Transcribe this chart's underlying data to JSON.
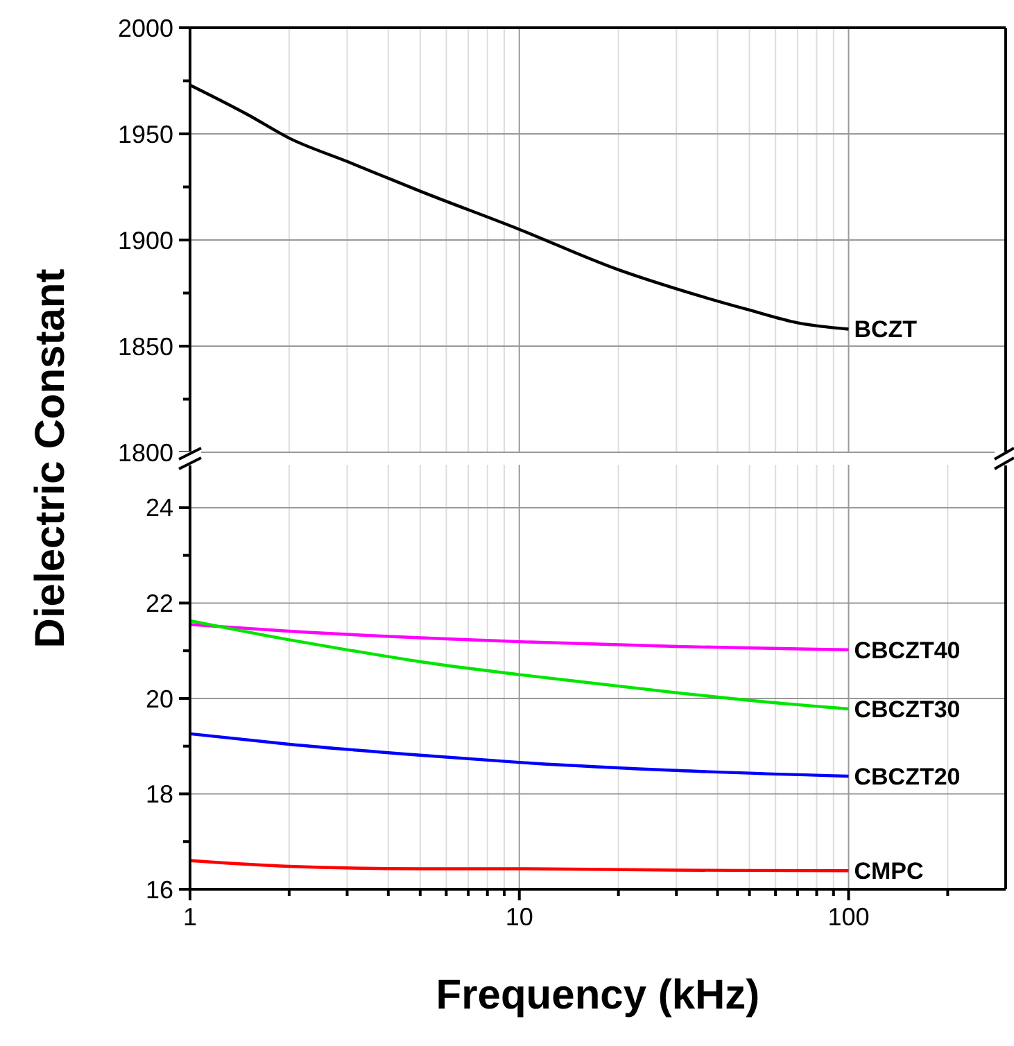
{
  "chart_data": [
    {
      "type": "line",
      "ylabel": "Dielectric Constant",
      "log": "x",
      "grid": true,
      "tick_labels": "y",
      "marker": "none",
      "line_style": "solid",
      "xlim": [
        1,
        300
      ],
      "xticks": [
        1,
        {
          "value": 2,
          "label": null
        },
        {
          "value": 3,
          "label": null
        },
        {
          "value": 4,
          "label": null
        },
        {
          "value": 5,
          "label": null
        },
        {
          "value": 6,
          "label": null
        },
        {
          "value": 7,
          "label": null
        },
        {
          "value": 8,
          "label": null
        },
        {
          "value": 9,
          "label": null
        },
        10,
        {
          "value": 20,
          "label": null
        },
        {
          "value": 30,
          "label": null
        },
        {
          "value": 40,
          "label": null
        },
        {
          "value": 50,
          "label": null
        },
        {
          "value": 60,
          "label": null
        },
        {
          "value": 70,
          "label": null
        },
        {
          "value": 80,
          "label": null
        },
        {
          "value": 90,
          "label": null
        },
        100
      ],
      "ylim": [
        1800,
        2000
      ],
      "yticks": [
        1800,
        {
          "value": 1825,
          "label": null
        },
        1850,
        {
          "value": 1875,
          "label": null
        },
        1900,
        {
          "value": 1925,
          "label": null
        },
        1950,
        {
          "value": 1975,
          "label": null
        },
        2000
      ],
      "series": [
        {
          "name": "BCZT",
          "color": "#000000",
          "x": [
            1,
            1.5,
            2,
            3,
            5,
            10,
            20,
            30,
            50,
            70,
            100
          ],
          "values": [
            1973,
            1959,
            1948,
            1937,
            1923,
            1905,
            1886,
            1877,
            1867,
            1861,
            1858
          ]
        }
      ]
    },
    {
      "type": "line",
      "xlabel": "Frequency (kHz)",
      "log": "x",
      "grid": true,
      "marker": "none",
      "line_style": "solid",
      "xlim": [
        1,
        300
      ],
      "xticks": [
        1,
        {
          "value": 2,
          "label": null
        },
        {
          "value": 3,
          "label": null
        },
        {
          "value": 4,
          "label": null
        },
        {
          "value": 5,
          "label": null
        },
        {
          "value": 6,
          "label": null
        },
        {
          "value": 7,
          "label": null
        },
        {
          "value": 8,
          "label": null
        },
        {
          "value": 9,
          "label": null
        },
        10,
        {
          "value": 20,
          "label": null
        },
        {
          "value": 30,
          "label": null
        },
        {
          "value": 40,
          "label": null
        },
        {
          "value": 50,
          "label": null
        },
        {
          "value": 60,
          "label": null
        },
        {
          "value": 70,
          "label": null
        },
        {
          "value": 80,
          "label": null
        },
        {
          "value": 90,
          "label": null
        },
        100,
        {
          "value": 200,
          "label": null
        }
      ],
      "ylim": [
        16,
        24.9
      ],
      "yticks": [
        16,
        {
          "value": 17,
          "label": null
        },
        18,
        {
          "value": 19,
          "label": null
        },
        20,
        {
          "value": 21,
          "label": null
        },
        22,
        {
          "value": 23,
          "label": null
        },
        24
      ],
      "series": [
        {
          "name": "CBCZT40",
          "color": "#ff00ff",
          "x": [
            1,
            2,
            10,
            30,
            100
          ],
          "values": [
            21.55,
            21.41,
            21.19,
            21.09,
            21.02
          ]
        },
        {
          "name": "CBCZT30",
          "color": "#00e600",
          "x": [
            1,
            2,
            3,
            5,
            10,
            20,
            30,
            50,
            100
          ],
          "values": [
            21.63,
            21.23,
            21.02,
            20.77,
            20.5,
            20.26,
            20.12,
            19.96,
            19.78
          ]
        },
        {
          "name": "CBCZT20",
          "color": "#0000ff",
          "x": [
            1,
            2,
            5,
            10,
            30,
            100
          ],
          "values": [
            19.26,
            19.04,
            18.81,
            18.66,
            18.49,
            18.37
          ]
        },
        {
          "name": "CMPC",
          "color": "#ff0000",
          "x": [
            1,
            2,
            5,
            10,
            30,
            100
          ],
          "values": [
            16.6,
            16.48,
            16.43,
            16.43,
            16.4,
            16.39
          ]
        }
      ]
    }
  ]
}
